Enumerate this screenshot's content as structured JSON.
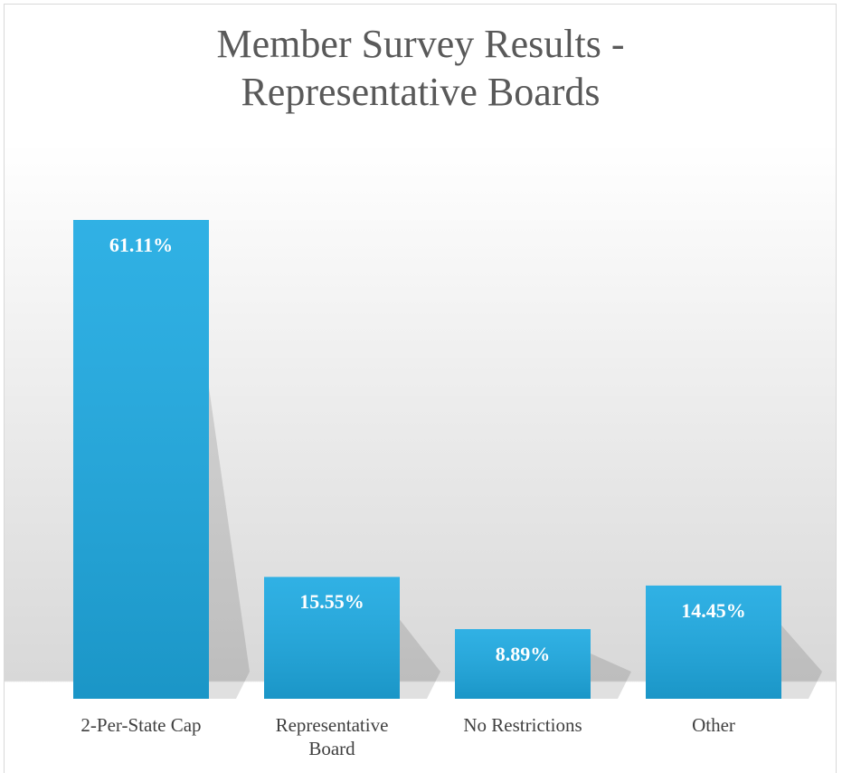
{
  "chart_data": {
    "type": "bar",
    "title": "Member Survey Results - Representative Boards",
    "categories": [
      "2-Per-State Cap",
      "Representative Board",
      "No Restrictions",
      "Other"
    ],
    "values": [
      61.11,
      15.55,
      8.89,
      14.45
    ],
    "value_labels": [
      "61.11%",
      "15.55%",
      "8.89%",
      "14.45%"
    ],
    "color": "#1eaae2"
  }
}
